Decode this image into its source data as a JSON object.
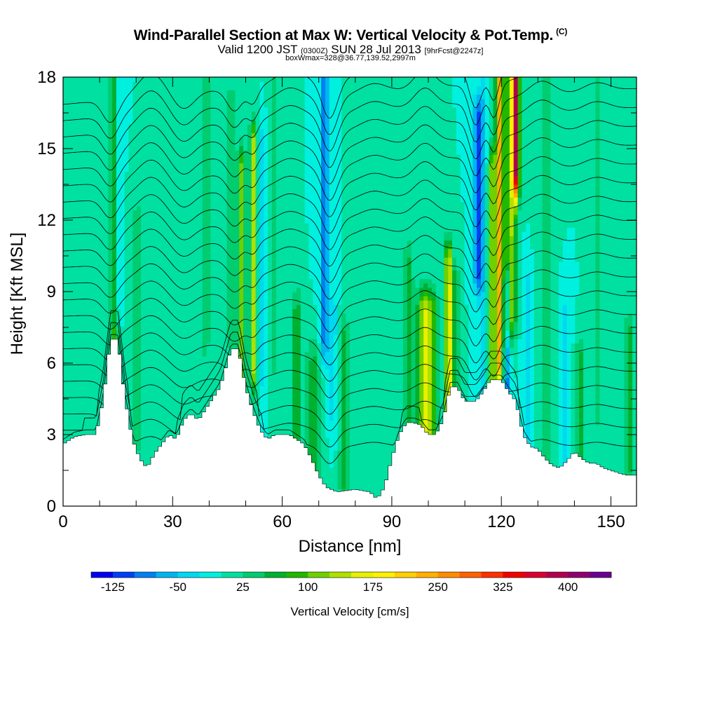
{
  "title": {
    "main": "Wind-Parallel Section at Max W: Vertical Velocity & Pot.Temp.",
    "copyright": "(C)",
    "valid_pre": "Valid 1200 JST",
    "valid_utc": "(0300Z)",
    "valid_post": "SUN 28 Jul 2013",
    "forecast": "[9hrFcst@2247z]",
    "boxwmax": "boxWmax=328@36.77,139.52,2997m"
  },
  "chart_data": {
    "type": "heatmap",
    "xlabel": "Distance [nm]",
    "ylabel": "Height [Kft MSL]",
    "xlim": [
      0,
      157
    ],
    "ylim": [
      0,
      18
    ],
    "x_ticks": [
      "0",
      "30",
      "60",
      "90",
      "120",
      "150"
    ],
    "y_ticks": [
      "0",
      "3",
      "6",
      "9",
      "12",
      "15",
      "18"
    ],
    "colorbar": {
      "title": "Vertical Velocity [cm/s]",
      "labels": [
        "-125",
        "-50",
        "25",
        "100",
        "175",
        "250",
        "325",
        "400"
      ],
      "colors": [
        "#0000f0",
        "#0040f5",
        "#0080f0",
        "#00b4f0",
        "#00d8f0",
        "#00f0e0",
        "#00e0a0",
        "#00cc70",
        "#00b030",
        "#20b800",
        "#70d000",
        "#b0e000",
        "#e8f000",
        "#fff000",
        "#ffd000",
        "#ffb000",
        "#ff8c00",
        "#ff6000",
        "#ff3000",
        "#f00000",
        "#d80030",
        "#b00050",
        "#900070",
        "#6a0090"
      ]
    },
    "background_value": 0,
    "terrain": [
      [
        0,
        2.6
      ],
      [
        3,
        2.9
      ],
      [
        6,
        3.0
      ],
      [
        9,
        3.0
      ],
      [
        11,
        4.5
      ],
      [
        13,
        7.0
      ],
      [
        15,
        7.0
      ],
      [
        17,
        4.5
      ],
      [
        19,
        2.8
      ],
      [
        21,
        2.0
      ],
      [
        23,
        1.6
      ],
      [
        25,
        2.2
      ],
      [
        27,
        2.6
      ],
      [
        29,
        3.0
      ],
      [
        31,
        2.8
      ],
      [
        33,
        3.6
      ],
      [
        35,
        3.9
      ],
      [
        37,
        3.6
      ],
      [
        40,
        4.3
      ],
      [
        43,
        5.0
      ],
      [
        46,
        6.6
      ],
      [
        48,
        6.6
      ],
      [
        50,
        5.0
      ],
      [
        52,
        4.0
      ],
      [
        54,
        3.2
      ],
      [
        56,
        2.8
      ],
      [
        58,
        3.0
      ],
      [
        62,
        3.0
      ],
      [
        66,
        2.6
      ],
      [
        68,
        2.0
      ],
      [
        70,
        1.3
      ],
      [
        72,
        0.8
      ],
      [
        75,
        0.6
      ],
      [
        80,
        0.7
      ],
      [
        84,
        0.6
      ],
      [
        86,
        0.3
      ],
      [
        88,
        0.8
      ],
      [
        90,
        2.0
      ],
      [
        92,
        3.0
      ],
      [
        94,
        3.5
      ],
      [
        96,
        3.5
      ],
      [
        98,
        3.4
      ],
      [
        100,
        3.0
      ],
      [
        102,
        3.0
      ],
      [
        104,
        3.6
      ],
      [
        106,
        5.0
      ],
      [
        108,
        5.0
      ],
      [
        110,
        4.4
      ],
      [
        113,
        4.4
      ],
      [
        115,
        4.8
      ],
      [
        117,
        5.3
      ],
      [
        120,
        5.3
      ],
      [
        122,
        4.8
      ],
      [
        124,
        4.4
      ],
      [
        126,
        3.0
      ],
      [
        128,
        2.5
      ],
      [
        130,
        2.4
      ],
      [
        132,
        2.0
      ],
      [
        134,
        1.7
      ],
      [
        136,
        1.6
      ],
      [
        138,
        1.9
      ],
      [
        140,
        2.3
      ],
      [
        142,
        2.0
      ],
      [
        144,
        1.8
      ],
      [
        146,
        1.8
      ],
      [
        148,
        1.6
      ],
      [
        150,
        1.5
      ],
      [
        152,
        1.4
      ],
      [
        154,
        1.3
      ],
      [
        157,
        1.3
      ]
    ],
    "features": [
      {
        "x": 14.0,
        "zmin": 4,
        "zmax": 18,
        "width": 1.2,
        "value": 80
      },
      {
        "x": 15.0,
        "zmin": 9,
        "zmax": 18,
        "width": 1.0,
        "value": -50
      },
      {
        "x": 20.5,
        "zmin": 3,
        "zmax": 12,
        "width": 2.0,
        "value": 35
      },
      {
        "x": 39.0,
        "zmin": 7,
        "zmax": 18,
        "width": 1.2,
        "value": 40
      },
      {
        "x": 46.0,
        "zmin": 7,
        "zmax": 17,
        "width": 2.0,
        "value": 30
      },
      {
        "x": 49.0,
        "zmin": 5,
        "zmax": 14,
        "width": 1.0,
        "value": 110
      },
      {
        "x": 52.0,
        "zmin": 6,
        "zmax": 15,
        "width": 0.9,
        "value": 150
      },
      {
        "x": 54.5,
        "zmin": 6,
        "zmax": 15,
        "width": 1.1,
        "value": -45
      },
      {
        "x": 58.0,
        "zmin": 6,
        "zmax": 18,
        "width": 1.6,
        "value": 30
      },
      {
        "x": 64.0,
        "zmin": 2,
        "zmax": 8,
        "width": 1.2,
        "value": 70
      },
      {
        "x": 68.5,
        "zmin": 1,
        "zmax": 6,
        "width": 2.2,
        "value": 55
      },
      {
        "x": 71.5,
        "zmin": 7,
        "zmax": 18,
        "width": 1.2,
        "value": -90
      },
      {
        "x": 74.0,
        "zmin": 4,
        "zmax": 8,
        "width": 1.3,
        "value": -35
      },
      {
        "x": 77.0,
        "zmin": 1,
        "zmax": 7,
        "width": 1.5,
        "value": 55
      },
      {
        "x": 82.0,
        "zmin": 6,
        "zmax": 18,
        "width": 1.8,
        "value": 25
      },
      {
        "x": 94.5,
        "zmin": 4,
        "zmax": 10,
        "width": 1.4,
        "value": 60
      },
      {
        "x": 99.0,
        "zmin": 3,
        "zmax": 8,
        "width": 2.0,
        "value": 150
      },
      {
        "x": 101.5,
        "zmin": 3,
        "zmax": 8,
        "width": 1.5,
        "value": 65
      },
      {
        "x": 105.5,
        "zmin": 4,
        "zmax": 10,
        "width": 1.0,
        "value": 180
      },
      {
        "x": 107.5,
        "zmin": 4,
        "zmax": 9,
        "width": 1.0,
        "value": 70
      },
      {
        "x": 113.5,
        "zmin": 10,
        "zmax": 16,
        "width": 1.1,
        "value": -120
      },
      {
        "x": 115.0,
        "zmin": 5,
        "zmax": 18,
        "width": 1.0,
        "value": -40
      },
      {
        "x": 117.5,
        "zmin": 5,
        "zmax": 14,
        "width": 1.0,
        "value": 120
      },
      {
        "x": 119.5,
        "zmin": 6,
        "zmax": 18,
        "width": 1.0,
        "value": 230
      },
      {
        "x": 121.5,
        "zmin": 3,
        "zmax": 9,
        "width": 1.0,
        "value": -80
      },
      {
        "x": 122.5,
        "zmin": 8,
        "zmax": 18,
        "width": 1.5,
        "value": 130
      },
      {
        "x": 124.0,
        "zmin": 14,
        "zmax": 18,
        "width": 0.9,
        "value": 328
      },
      {
        "x": 127.0,
        "zmin": 3,
        "zmax": 9,
        "width": 1.3,
        "value": -35
      },
      {
        "x": 132.0,
        "zmin": 2,
        "zmax": 18,
        "width": 2.0,
        "value": 35
      },
      {
        "x": 137.5,
        "zmin": 2,
        "zmax": 8,
        "width": 1.5,
        "value": -30
      },
      {
        "x": 141.5,
        "zmin": 2,
        "zmax": 6,
        "width": 1.3,
        "value": 60
      },
      {
        "x": 146.5,
        "zmin": 4,
        "zmax": 18,
        "width": 2.0,
        "value": 30
      },
      {
        "x": 155.0,
        "zmin": 2,
        "zmax": 7,
        "width": 1.3,
        "value": 65
      }
    ],
    "theta_lines_count": 22,
    "theta_base_height": 2.5,
    "theta_top_height": 18.0,
    "theta_perturbations": [
      {
        "x": 13,
        "amp": -0.7,
        "width": 3
      },
      {
        "x": 24,
        "amp": 0.7,
        "width": 5
      },
      {
        "x": 33,
        "amp": -0.5,
        "width": 4
      },
      {
        "x": 47,
        "amp": -0.7,
        "width": 3
      },
      {
        "x": 52,
        "amp": -0.5,
        "width": 2
      },
      {
        "x": 62,
        "amp": 0.4,
        "width": 5
      },
      {
        "x": 73,
        "amp": -1.2,
        "width": 3
      },
      {
        "x": 85,
        "amp": 0.3,
        "width": 5
      },
      {
        "x": 99,
        "amp": 0.6,
        "width": 4
      },
      {
        "x": 113,
        "amp": -1.3,
        "width": 2.5
      },
      {
        "x": 118,
        "amp": -1.1,
        "width": 2
      },
      {
        "x": 131,
        "amp": 0.5,
        "width": 5
      },
      {
        "x": 146,
        "amp": 0.3,
        "width": 5
      }
    ]
  }
}
